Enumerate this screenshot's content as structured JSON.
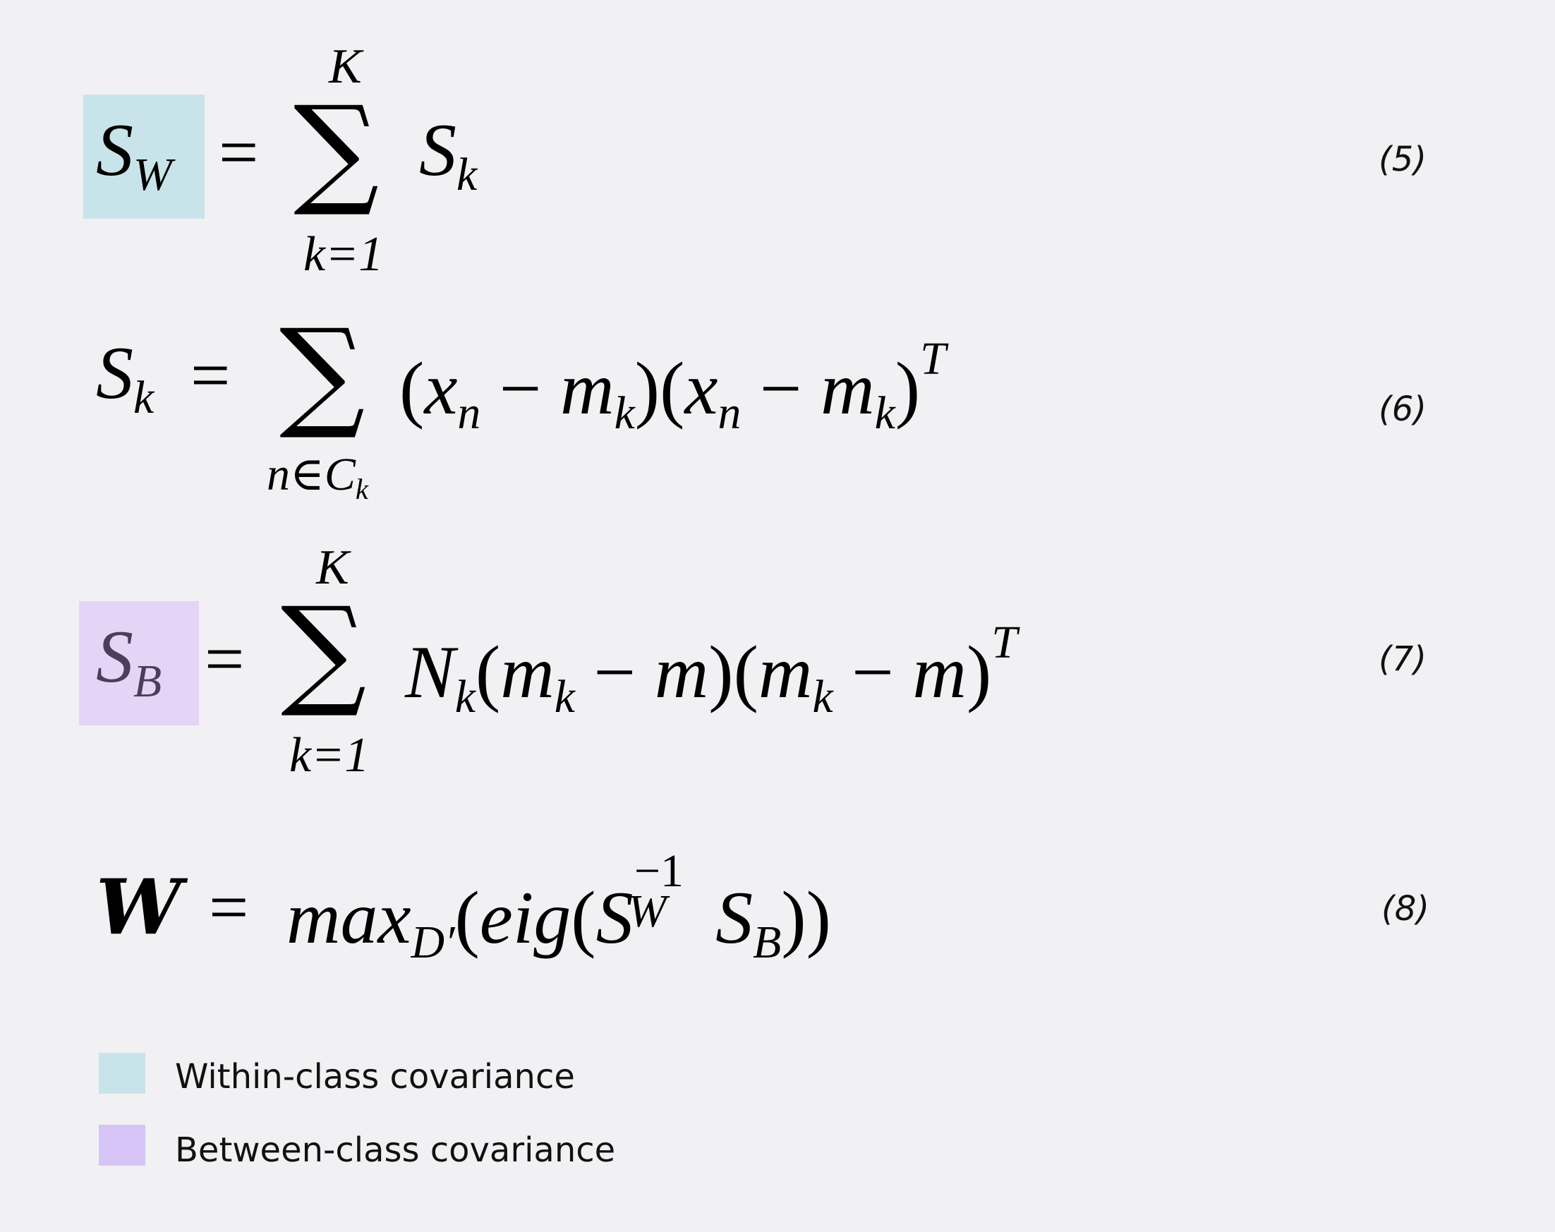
{
  "colors": {
    "background": "#f1f1f3",
    "within_class_highlight": "#c8e4ea",
    "between_class_highlight": "#e4d4f6",
    "within_class_swatch": "#c8e4ea",
    "between_class_swatch": "#d6c4f6",
    "highlighted_symbol_text": "#4a3f5a"
  },
  "equations": [
    {
      "number": "(5)",
      "lhs_symbol": "S",
      "lhs_sub": "W",
      "equals": "=",
      "sum_sign": "∑",
      "sum_upper": "K",
      "sum_lower": "k=1",
      "body_symbol": "S",
      "body_sub": "k"
    },
    {
      "number": "(6)",
      "lhs_symbol": "S",
      "lhs_sub": "k",
      "equals": "=",
      "sum_sign": "∑",
      "sum_lower": "n∈C",
      "sum_lower_sub": "k",
      "body": {
        "open1": "(",
        "x1": "x",
        "x1_sub": "n",
        "minus1": "−",
        "m1": "m",
        "m1_sub": "k",
        "close1": ")",
        "open2": "(",
        "x2": "x",
        "x2_sub": "n",
        "minus2": "−",
        "m2": "m",
        "m2_sub": "k",
        "close2": ")",
        "transpose": "T"
      }
    },
    {
      "number": "(7)",
      "lhs_symbol": "S",
      "lhs_sub": "B",
      "equals": "=",
      "sum_sign": "∑",
      "sum_upper": "K",
      "sum_lower": "k=1",
      "body": {
        "N": "N",
        "N_sub": "k",
        "open1": "(",
        "m1": "m",
        "m1_sub": "k",
        "minus1": "−",
        "mean1": "m",
        "close1": ")",
        "open2": "(",
        "m2": "m",
        "m2_sub": "k",
        "minus2": "−",
        "mean2": "m",
        "close2": ")",
        "transpose": "T"
      }
    },
    {
      "number": "(8)",
      "lhs_symbol": "W",
      "equals": "=",
      "body": {
        "max": "max",
        "max_sub": "D′",
        "open1": "(",
        "eig": "eig",
        "open2": "(",
        "sw": "S",
        "sw_sup": "−1",
        "sw_sub": "W",
        "sb": "S",
        "sb_sub": "B",
        "close": "))"
      }
    }
  ],
  "legend": [
    {
      "label": "Within-class covariance"
    },
    {
      "label": "Between-class covariance"
    }
  ]
}
